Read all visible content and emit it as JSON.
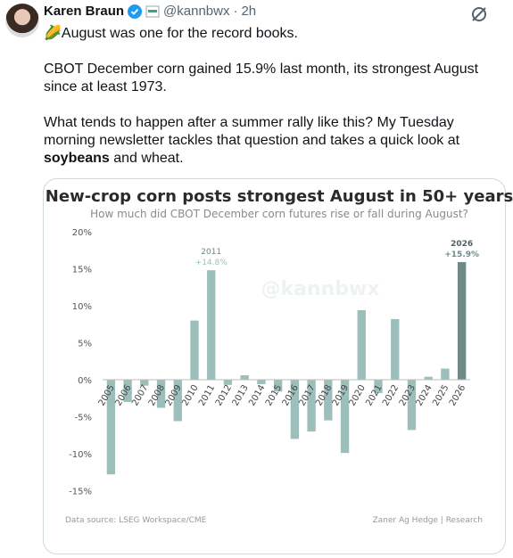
{
  "tweet": {
    "name": "Karen Braun",
    "handle": "@kannbwx",
    "time": "2h",
    "paragraphs": [
      [
        "🌽August was one for the record books."
      ],
      [
        "CBOT December corn gained 15.9% last month, its strongest August since at least 1973."
      ],
      [
        "What tends to happen after a summer rally like this? My Tuesday morning newsletter tackles that question and takes a quick look at ",
        "soybeans",
        " and wheat."
      ]
    ]
  },
  "chart_data": {
    "type": "bar",
    "title": "New-crop corn posts strongest August in 50+ years",
    "subtitle": "How much did CBOT December corn futures rise or fall during August?",
    "watermark": "@kannbwx",
    "source": "Data source: LSEG Workspace/CME",
    "credit": "Zaner Ag Hedge | Research",
    "categories": [
      "2005",
      "2006",
      "2007",
      "2008",
      "2009",
      "2010",
      "2011",
      "2012",
      "2013",
      "2014",
      "2015",
      "2016",
      "2017",
      "2018",
      "2019",
      "2020",
      "2021",
      "2022",
      "2023",
      "2024",
      "2025",
      "2026"
    ],
    "values": [
      -12.8,
      -3.0,
      -0.8,
      -3.8,
      -5.6,
      8.0,
      14.8,
      -0.7,
      0.6,
      -0.6,
      -1.6,
      -8.0,
      -7.0,
      -5.5,
      -9.9,
      9.4,
      -1.8,
      8.2,
      -6.8,
      0.4,
      1.5,
      15.9
    ],
    "value_labels": [
      null,
      null,
      null,
      null,
      null,
      null,
      "+14.8%",
      null,
      null,
      null,
      null,
      null,
      null,
      null,
      null,
      null,
      null,
      null,
      null,
      null,
      null,
      "+15.9%"
    ],
    "colors": [
      "#9dbfbb",
      "#9dbfbb",
      "#9dbfbb",
      "#9dbfbb",
      "#9dbfbb",
      "#9dbfbb",
      "#9dbfbb",
      "#9dbfbb",
      "#9dbfbb",
      "#9dbfbb",
      "#9dbfbb",
      "#9dbfbb",
      "#9dbfbb",
      "#9dbfbb",
      "#9dbfbb",
      "#9dbfbb",
      "#9dbfbb",
      "#9dbfbb",
      "#9dbfbb",
      "#9dbfbb",
      "#9dbfbb",
      "#6e8b88"
    ],
    "ylim": [
      -15,
      20
    ],
    "yticks": [
      {
        "value": -15,
        "label": "-15%"
      },
      {
        "value": -10,
        "label": "-10%"
      },
      {
        "value": -5,
        "label": "-5%"
      },
      {
        "value": 0,
        "label": "0%"
      },
      {
        "value": 5,
        "label": "5%"
      },
      {
        "value": 10,
        "label": "10%"
      },
      {
        "value": 15,
        "label": "15%"
      },
      {
        "value": 20,
        "label": "20%"
      }
    ],
    "grid": false
  }
}
